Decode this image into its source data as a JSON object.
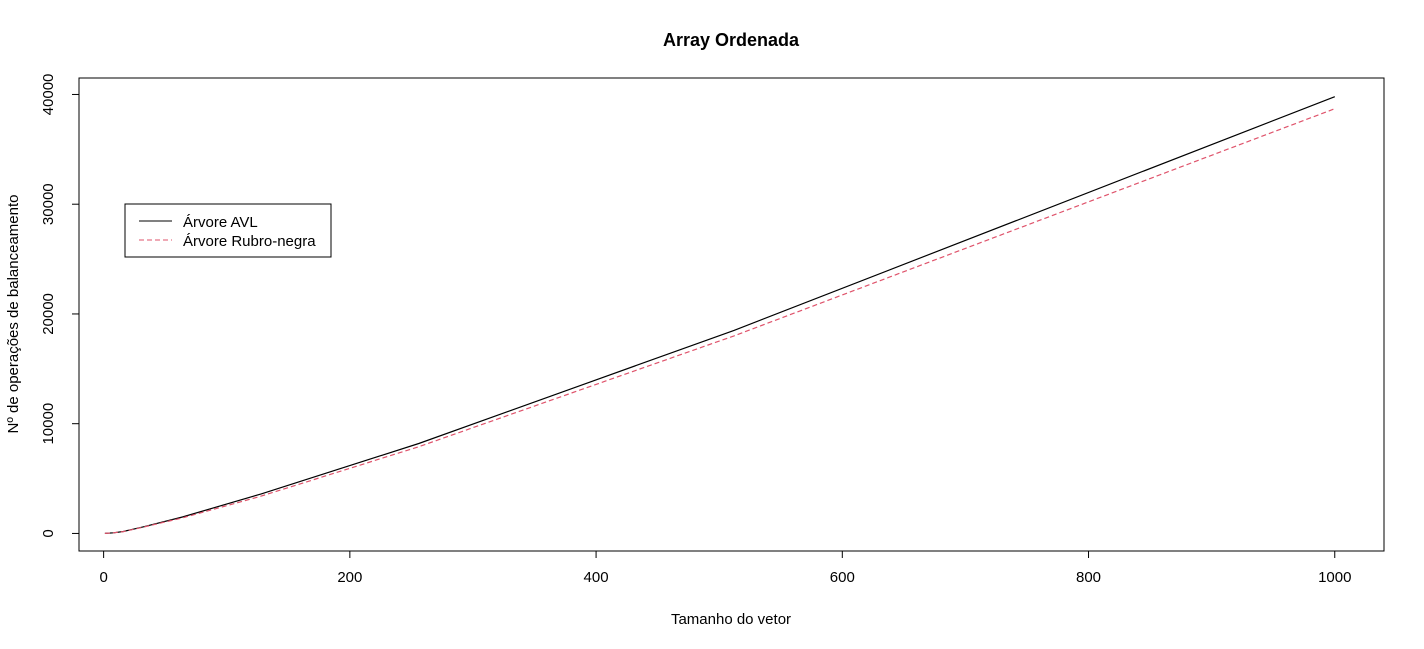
{
  "chart_data": {
    "type": "line",
    "title": "Array Ordenada",
    "xlabel": "Tamanho do vetor",
    "ylabel": "Nº de operações de balanceamento",
    "xlim": [
      -20,
      1040
    ],
    "ylim": [
      -1600,
      41500
    ],
    "xticks": [
      0,
      200,
      400,
      600,
      800,
      1000
    ],
    "yticks": [
      0,
      10000,
      20000,
      30000,
      40000
    ],
    "grid": false,
    "legend_position": "left",
    "series": [
      {
        "name": "Árvore AVL",
        "color": "#000000",
        "dash": "solid",
        "x": [
          1,
          8,
          16,
          32,
          64,
          128,
          256,
          512,
          1000
        ],
        "y": [
          0,
          60,
          180,
          600,
          1500,
          3600,
          8200,
          18500,
          39800
        ]
      },
      {
        "name": "Árvore Rubro-negra",
        "color": "#DF536B",
        "dash": "dashed",
        "x": [
          1,
          8,
          16,
          32,
          64,
          128,
          256,
          512,
          1000
        ],
        "y": [
          0,
          55,
          170,
          570,
          1420,
          3400,
          7900,
          18000,
          38700
        ]
      }
    ]
  }
}
